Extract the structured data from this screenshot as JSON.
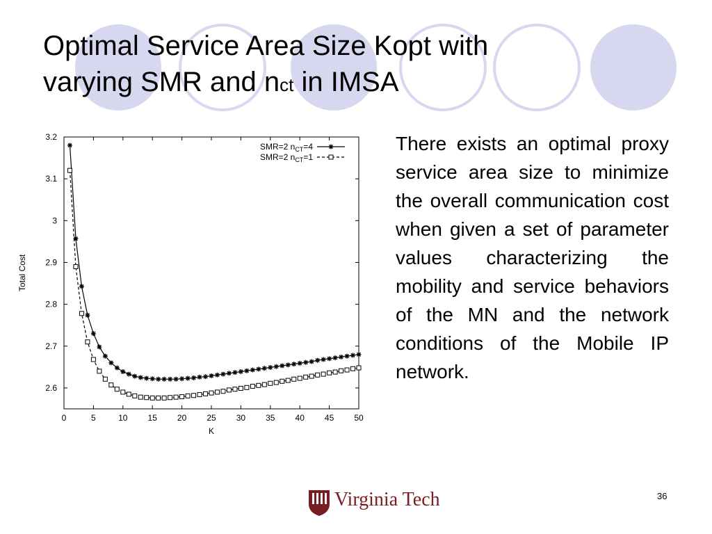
{
  "slide": {
    "title_line1": "Optimal Service Area Size Kopt with",
    "title_line2_pre": "varying SMR and n",
    "title_line2_sub": "ct",
    "title_line2_post": " in IMSA",
    "body": "There exists an optimal proxy service area size to minimize the overall communication cost when given a set of parameter values characterizing the mobility and service behaviors of the MN and the network conditions of the Mobile IP network.",
    "page_number": "36",
    "logo_text": "Virginia Tech",
    "accent_color": "#d7d7ef",
    "logo_color": "#7a1d22"
  },
  "chart_data": {
    "type": "line",
    "title": "",
    "xlabel": "K",
    "ylabel": "Total Cost",
    "xlim": [
      0,
      50
    ],
    "ylim": [
      2.55,
      3.2
    ],
    "x_ticks": [
      0,
      5,
      10,
      15,
      20,
      25,
      30,
      35,
      40,
      45,
      50
    ],
    "y_ticks": [
      2.6,
      2.7,
      2.8,
      2.9,
      3.0,
      3.1,
      3.2
    ],
    "y_tick_labels": [
      "2.6",
      "2.7",
      "2.8",
      "2.9",
      "3",
      "3.1",
      "3.2"
    ],
    "grid": false,
    "legend_position": "top-right",
    "x": [
      1,
      2,
      3,
      4,
      5,
      6,
      7,
      8,
      9,
      10,
      11,
      12,
      13,
      14,
      15,
      16,
      17,
      18,
      19,
      20,
      21,
      22,
      23,
      24,
      25,
      26,
      27,
      28,
      29,
      30,
      31,
      32,
      33,
      34,
      35,
      36,
      37,
      38,
      39,
      40,
      41,
      42,
      43,
      44,
      45,
      46,
      47,
      48,
      49,
      50
    ],
    "series": [
      {
        "name_pre": "SMR=2 n",
        "name_sub": "CT",
        "name_post": "=4",
        "marker": "star",
        "line": "solid",
        "values": [
          3.18,
          2.957,
          2.843,
          2.774,
          2.73,
          2.698,
          2.676,
          2.66,
          2.648,
          2.639,
          2.633,
          2.628,
          2.625,
          2.623,
          2.622,
          2.621,
          2.621,
          2.621,
          2.621,
          2.622,
          2.623,
          2.624,
          2.626,
          2.627,
          2.629,
          2.631,
          2.633,
          2.635,
          2.637,
          2.639,
          2.641,
          2.643,
          2.645,
          2.647,
          2.649,
          2.651,
          2.653,
          2.655,
          2.657,
          2.659,
          2.661,
          2.663,
          2.666,
          2.668,
          2.67,
          2.672,
          2.674,
          2.676,
          2.678,
          2.68
        ]
      },
      {
        "name_pre": "SMR=2 n",
        "name_sub": "CT",
        "name_post": "=1",
        "marker": "square",
        "line": "dashed",
        "values": [
          3.12,
          2.89,
          2.778,
          2.71,
          2.668,
          2.64,
          2.621,
          2.607,
          2.597,
          2.59,
          2.585,
          2.581,
          2.578,
          2.577,
          2.576,
          2.576,
          2.576,
          2.577,
          2.578,
          2.579,
          2.581,
          2.582,
          2.584,
          2.586,
          2.588,
          2.59,
          2.592,
          2.595,
          2.597,
          2.599,
          2.601,
          2.604,
          2.606,
          2.608,
          2.611,
          2.613,
          2.616,
          2.618,
          2.621,
          2.623,
          2.626,
          2.628,
          2.631,
          2.633,
          2.636,
          2.638,
          2.641,
          2.643,
          2.646,
          2.648
        ]
      }
    ]
  }
}
